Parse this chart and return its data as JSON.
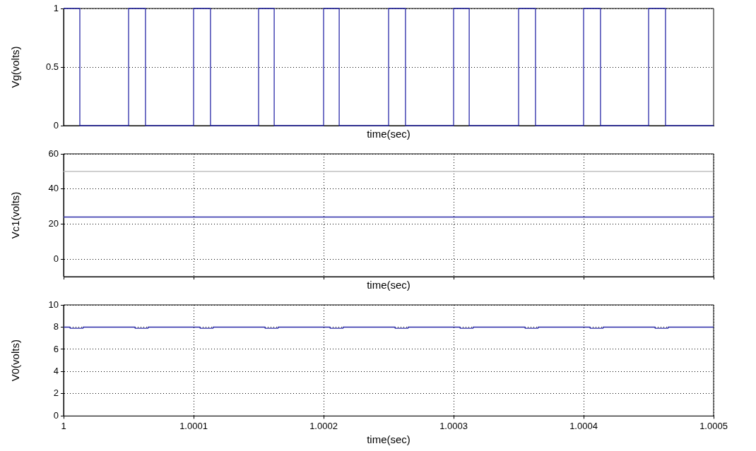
{
  "chart_data": [
    {
      "type": "step",
      "xlabel": "time(sec)",
      "ylabel": "Vg(volts)",
      "xlim": [
        1,
        1.0005
      ],
      "ylim": [
        0,
        1
      ],
      "yticks": [
        0,
        0.5,
        1
      ],
      "grid": "y",
      "tick_labels": "y",
      "series": [
        {
          "color": "#2a2aa8",
          "x": [
            1,
            1.0000125,
            1.00005,
            1.000063,
            1.0001,
            1.000113,
            1.00015,
            1.000162,
            1.0002,
            1.000212,
            1.00025,
            1.000263,
            1.0003,
            1.000312,
            1.00035,
            1.000363,
            1.0004,
            1.000413,
            1.00045,
            1.000463,
            1.0005
          ],
          "values": [
            1,
            0,
            1,
            0,
            1,
            0,
            1,
            0,
            1,
            0,
            1,
            0,
            1,
            0,
            1,
            0,
            1,
            0,
            1,
            0,
            0
          ]
        }
      ]
    },
    {
      "type": "line",
      "xlabel": "time(sec)",
      "ylabel": "Vc1(volts)",
      "xlim": [
        1,
        1.0005
      ],
      "xticks": [
        1,
        1.0001,
        1.0002,
        1.0003,
        1.0004,
        1.0005
      ],
      "ylim": [
        -10,
        60
      ],
      "yticks": [
        0,
        20,
        40,
        60
      ],
      "grid": true,
      "tick_labels": "y",
      "series": [
        {
          "color": "#b4b4b4",
          "x": [
            1,
            1.0005
          ],
          "values": [
            50,
            50
          ]
        },
        {
          "color": "#2a2aa8",
          "x": [
            1,
            1.0005
          ],
          "values": [
            24,
            24
          ]
        }
      ]
    },
    {
      "type": "line",
      "xlabel": "time(sec)",
      "ylabel": "V0(volts)",
      "xlim": [
        1,
        1.0005
      ],
      "xticks": [
        1,
        1.0001,
        1.0002,
        1.0003,
        1.0004,
        1.0005
      ],
      "ylim": [
        0,
        10
      ],
      "yticks": [
        0,
        2,
        4,
        6,
        8,
        10
      ],
      "grid": true,
      "series": [
        {
          "color": "#2a2aa8",
          "x": [
            1,
            1.000005,
            1.000005,
            1.000015,
            1.000015,
            1.000055,
            1.000055,
            1.000065,
            1.000065,
            1.000105,
            1.000105,
            1.000115,
            1.000115,
            1.000155,
            1.000155,
            1.000165,
            1.000165,
            1.000205,
            1.000205,
            1.000215,
            1.000215,
            1.000255,
            1.000255,
            1.000265,
            1.000265,
            1.000305,
            1.000305,
            1.000315,
            1.000315,
            1.000355,
            1.000355,
            1.000365,
            1.000365,
            1.000405,
            1.000405,
            1.000415,
            1.000415,
            1.000455,
            1.000455,
            1.000465,
            1.000465,
            1.0005
          ],
          "values": [
            8,
            8,
            7.9,
            7.9,
            8,
            8,
            7.9,
            7.9,
            8,
            8,
            7.9,
            7.9,
            8,
            8,
            7.9,
            7.9,
            8,
            8,
            7.9,
            7.9,
            8,
            8,
            7.9,
            7.9,
            8,
            8,
            7.9,
            7.9,
            8,
            8,
            7.9,
            7.9,
            8,
            8,
            7.9,
            7.9,
            8,
            8,
            7.9,
            7.9,
            8,
            8
          ]
        }
      ]
    }
  ]
}
